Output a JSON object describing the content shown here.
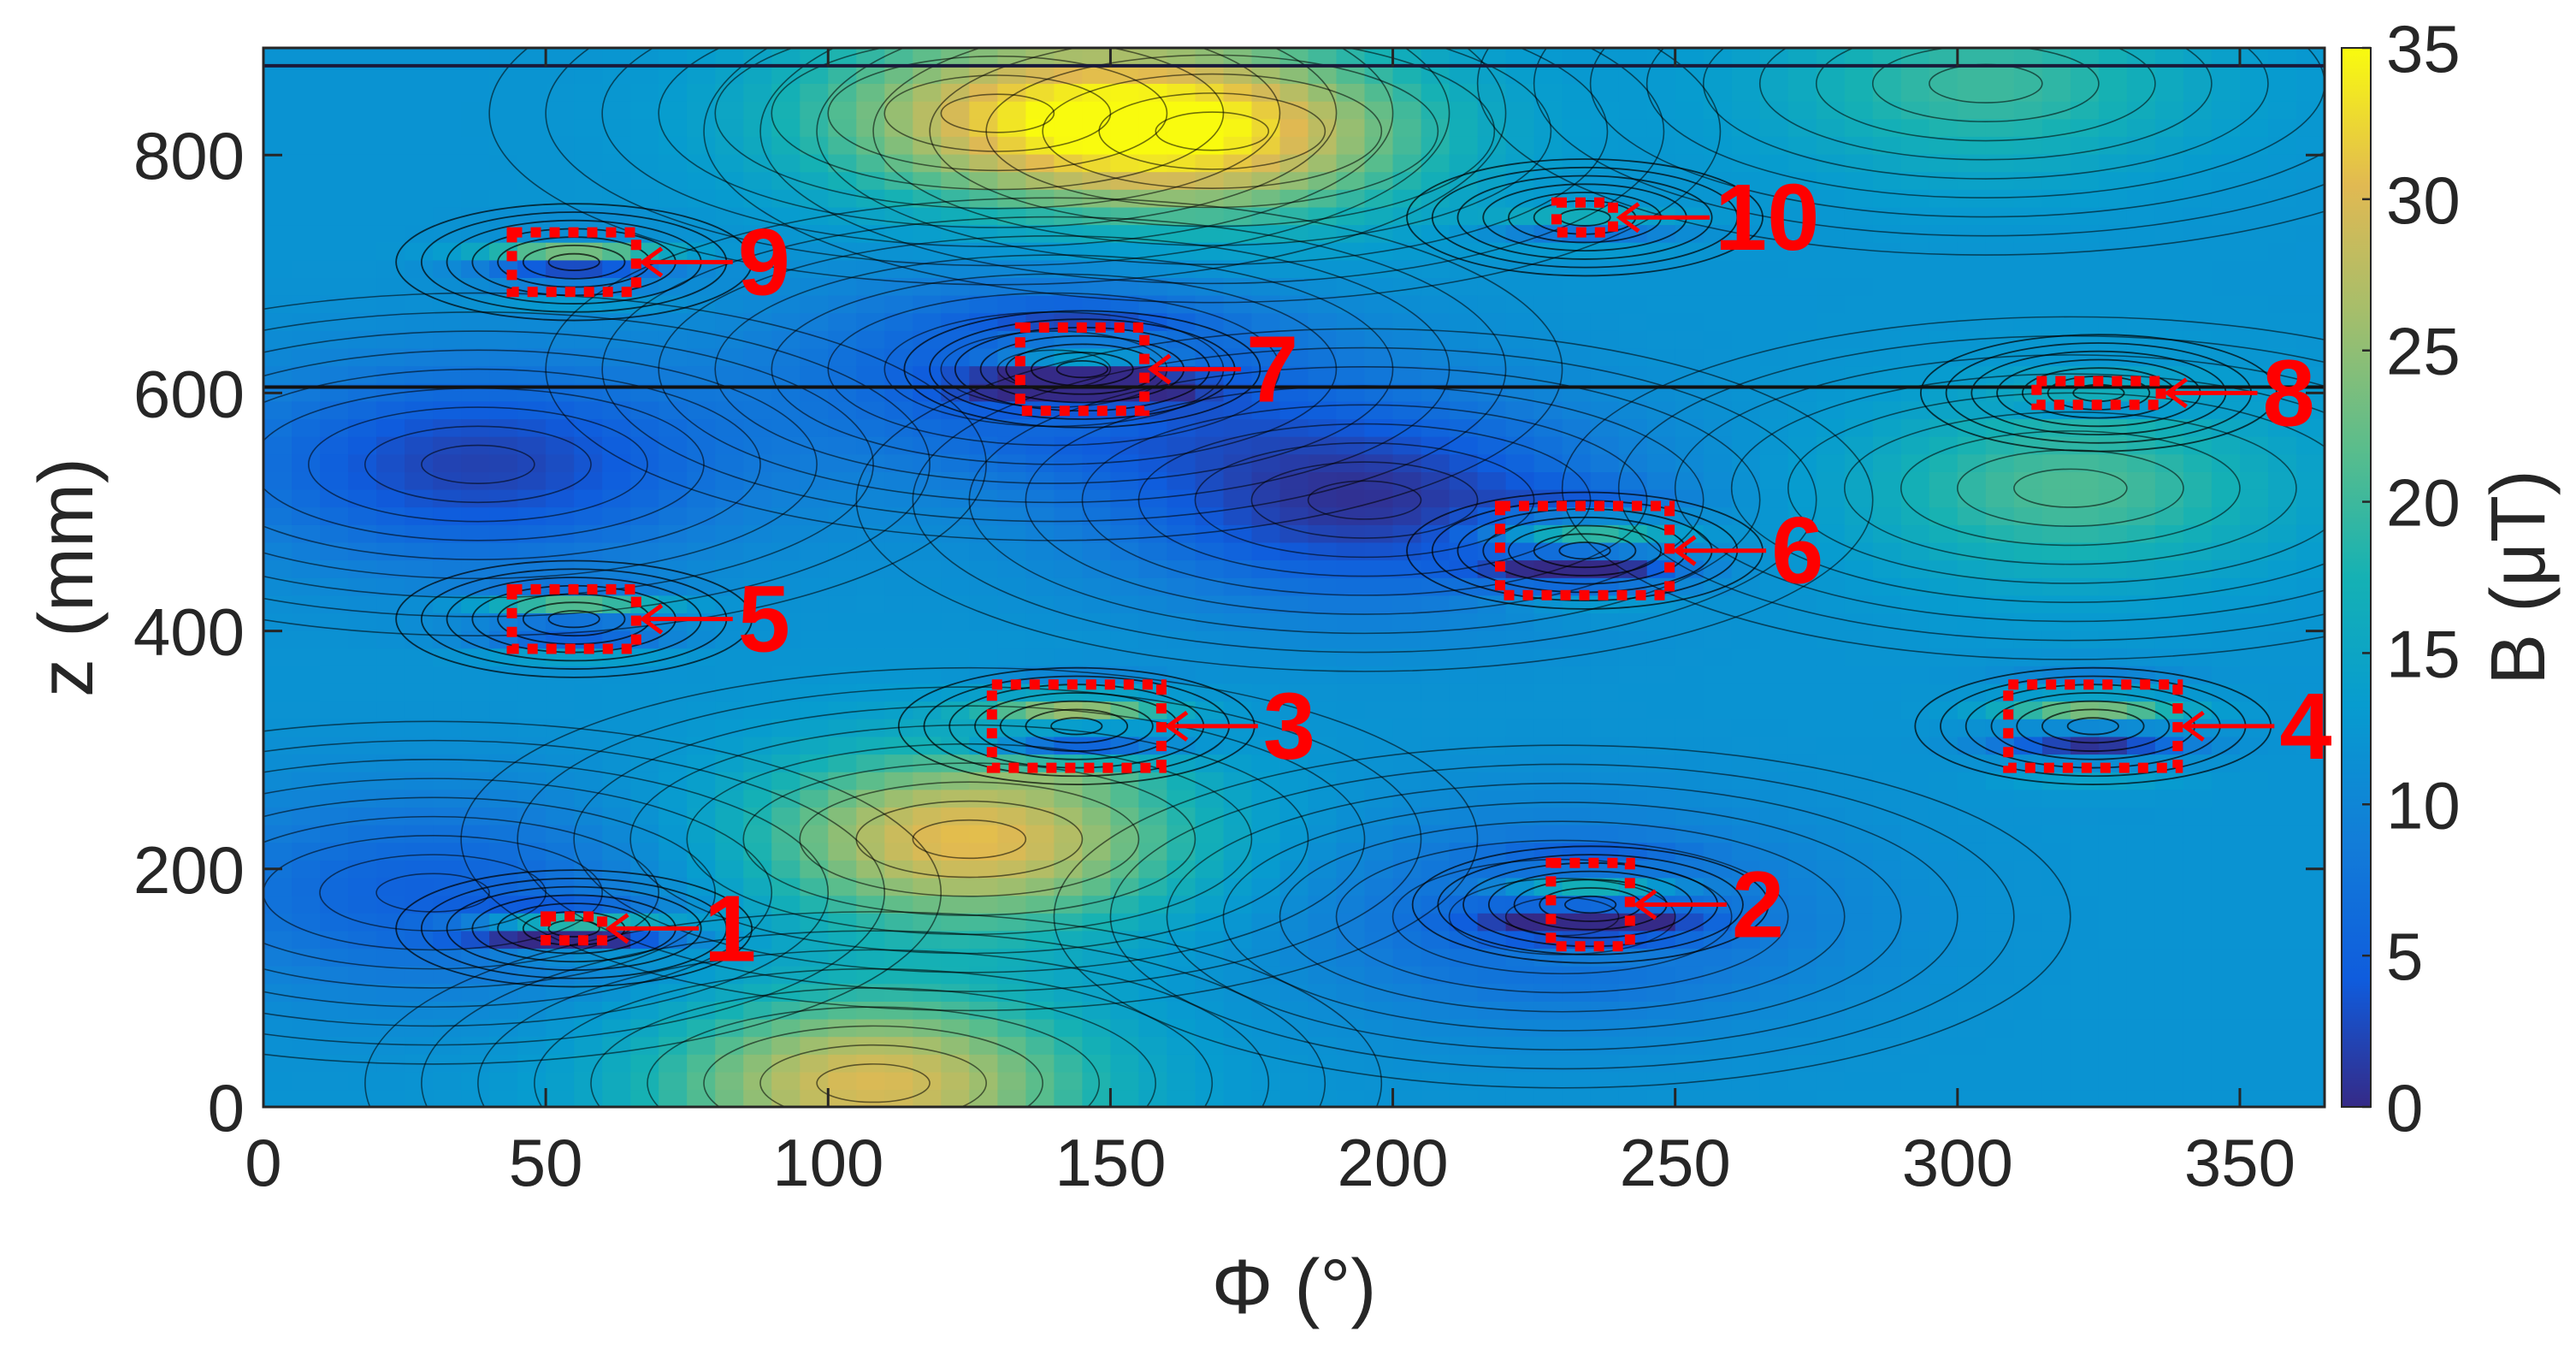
{
  "chart_data": {
    "type": "heatmap",
    "title": "",
    "xlabel": "Φ (°)",
    "ylabel": "z (mm)",
    "colorbar_label": "B (μT)",
    "xlim": [
      0,
      365
    ],
    "ylim": [
      0,
      890
    ],
    "clim": [
      0,
      35
    ],
    "xticks": [
      "0",
      "50",
      "100",
      "150",
      "200",
      "250",
      "300",
      "350"
    ],
    "xtick_values": [
      0,
      50,
      100,
      150,
      200,
      250,
      300,
      350
    ],
    "yticks": [
      "0",
      "200",
      "400",
      "600",
      "800"
    ],
    "ytick_values": [
      0,
      200,
      400,
      600,
      800
    ],
    "cbticks": [
      "0",
      "5",
      "10",
      "15",
      "20",
      "25",
      "30",
      "35"
    ],
    "cbtick_values": [
      0,
      5,
      10,
      15,
      20,
      25,
      30,
      35
    ],
    "colormap": "parula",
    "background_level": 12,
    "contour_lines": true,
    "grid": false,
    "field_features": [
      {
        "phi": 130,
        "z": 835,
        "peak": 26,
        "kind": "high"
      },
      {
        "phi": 168,
        "z": 820,
        "peak": 31,
        "kind": "high"
      },
      {
        "phi": 125,
        "z": 225,
        "peak": 31,
        "kind": "high"
      },
      {
        "phi": 108,
        "z": 20,
        "peak": 30,
        "kind": "high"
      },
      {
        "phi": 320,
        "z": 520,
        "peak": 21,
        "kind": "high"
      },
      {
        "phi": 305,
        "z": 860,
        "peak": 20,
        "kind": "high"
      },
      {
        "phi": 195,
        "z": 510,
        "peak": 1,
        "kind": "low"
      },
      {
        "phi": 38,
        "z": 540,
        "peak": 2,
        "kind": "low"
      },
      {
        "phi": 140,
        "z": 620,
        "peak": 3,
        "kind": "low"
      },
      {
        "phi": 30,
        "z": 180,
        "peak": 5,
        "kind": "low"
      },
      {
        "phi": 230,
        "z": 160,
        "peak": 5,
        "kind": "low"
      }
    ],
    "defects": [
      {
        "id": "1",
        "phi_range": [
          50,
          60
        ],
        "z_range": [
          140,
          160
        ]
      },
      {
        "id": "2",
        "phi_range": [
          228,
          242
        ],
        "z_range": [
          135,
          205
        ]
      },
      {
        "id": "3",
        "phi_range": [
          129,
          159
        ],
        "z_range": [
          285,
          355
        ]
      },
      {
        "id": "4",
        "phi_range": [
          309,
          339
        ],
        "z_range": [
          285,
          355
        ]
      },
      {
        "id": "5",
        "phi_range": [
          44,
          66
        ],
        "z_range": [
          385,
          435
        ]
      },
      {
        "id": "6",
        "phi_range": [
          219,
          249
        ],
        "z_range": [
          430,
          505
        ]
      },
      {
        "id": "7",
        "phi_range": [
          134,
          156
        ],
        "z_range": [
          585,
          655
        ]
      },
      {
        "id": "8",
        "phi_range": [
          314,
          336
        ],
        "z_range": [
          590,
          610
        ]
      },
      {
        "id": "9",
        "phi_range": [
          44,
          66
        ],
        "z_range": [
          685,
          735
        ]
      },
      {
        "id": "10",
        "phi_range": [
          229,
          239
        ],
        "z_range": [
          735,
          760
        ]
      }
    ],
    "stripes": [
      {
        "phi_range": [
          0,
          365
        ],
        "z": 875,
        "value": 0
      },
      {
        "phi_range": [
          0,
          365
        ],
        "z": 605,
        "value": 0
      }
    ]
  }
}
